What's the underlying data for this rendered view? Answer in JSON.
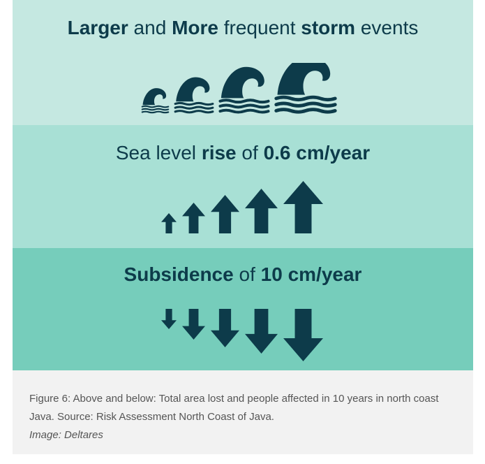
{
  "infographic": {
    "storm_section": {
      "headline": [
        {
          "text": "Larger",
          "bold": true
        },
        {
          "text": " and ",
          "bold": false
        },
        {
          "text": "More",
          "bold": true
        },
        {
          "text": " frequent ",
          "bold": false
        },
        {
          "text": "storm",
          "bold": true
        },
        {
          "text": " events",
          "bold": false
        }
      ],
      "icon": "wave-icon",
      "icon_count": 4
    },
    "sea_level_section": {
      "headline": [
        {
          "text": "Sea level ",
          "bold": false
        },
        {
          "text": "rise",
          "bold": true
        },
        {
          "text": " of ",
          "bold": false
        },
        {
          "text": "0.6 cm/year",
          "bold": true
        }
      ],
      "icon": "arrow-up-icon",
      "icon_count": 5
    },
    "subsidence_section": {
      "headline": [
        {
          "text": "Subsidence",
          "bold": true
        },
        {
          "text": " of ",
          "bold": false
        },
        {
          "text": "10 cm/year",
          "bold": true
        }
      ],
      "icon": "arrow-down-icon",
      "icon_count": 5
    },
    "colors": {
      "icon": "#0d3b4a",
      "band_light": "#c5e8e1",
      "band_medium": "#a8e0d5",
      "band_dark": "#76cdbb",
      "caption_background": "#f2f2f2"
    }
  },
  "caption": {
    "text": "Figure 6: Above and below: Total area lost and people affected in 10 years in north coast Java. Source: Risk Assessment North Coast of Java.",
    "credit": "Image: Deltares"
  }
}
